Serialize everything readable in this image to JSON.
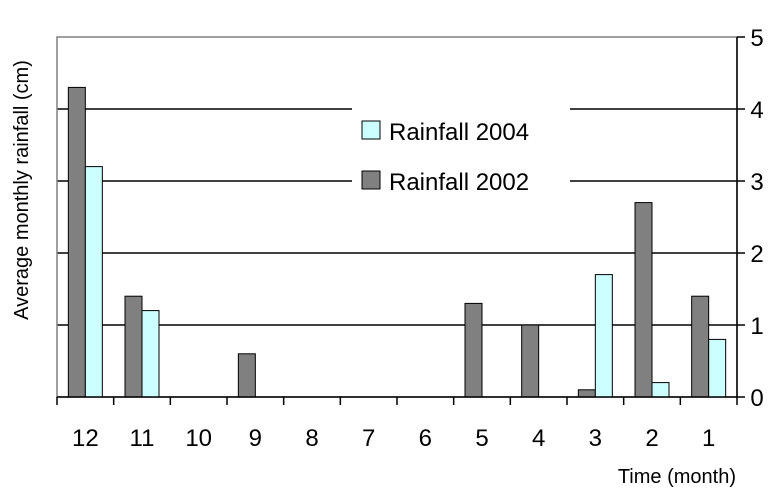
{
  "chart_data": {
    "type": "bar",
    "categories": [
      "12",
      "11",
      "10",
      "9",
      "8",
      "7",
      "6",
      "5",
      "4",
      "3",
      "2",
      "1"
    ],
    "series": [
      {
        "name": "Rainfall 2002",
        "color": "#808080",
        "values": [
          4.3,
          1.4,
          0,
          0.6,
          0,
          0,
          0,
          1.3,
          1.0,
          0.1,
          2.7,
          1.4
        ]
      },
      {
        "name": "Rainfall 2004",
        "color": "#ccffff",
        "values": [
          3.2,
          1.2,
          0,
          0,
          0,
          0,
          0,
          0,
          0,
          1.7,
          0.2,
          0.8
        ]
      }
    ],
    "xlabel": "Time (month)",
    "ylabel": "Average monthly rainfall (cm)",
    "ylim": [
      0,
      5
    ],
    "yticks": [
      "0",
      "1",
      "2",
      "3",
      "4",
      "5"
    ],
    "y_axis_side": "right",
    "grid": true,
    "legend": {
      "placement": "top-center",
      "entries": [
        "Rainfall 2004",
        "Rainfall 2002"
      ]
    }
  }
}
